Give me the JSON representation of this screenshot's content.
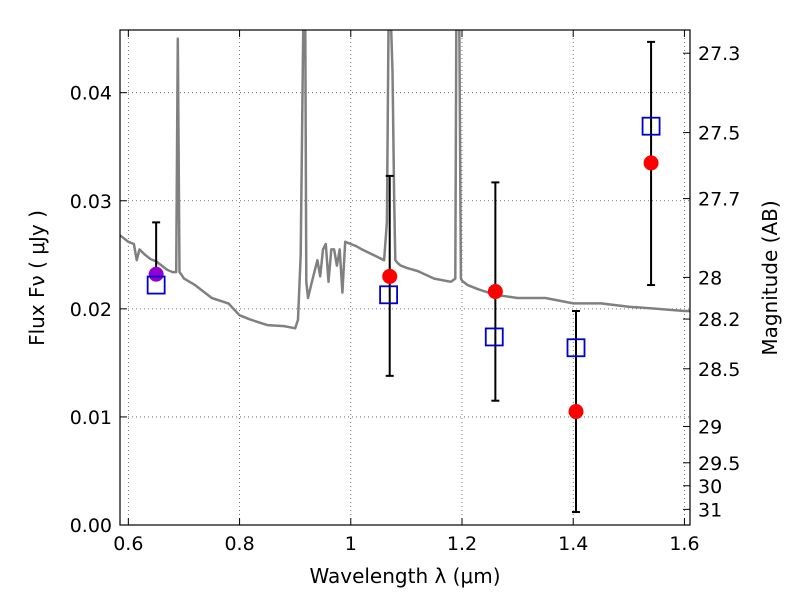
{
  "chart_data": {
    "type": "scatter",
    "title": "",
    "xlabel": "Wavelength  λ (μm)",
    "ylabel": "Flux  Fν  ( μJy )",
    "y2label": "Magnitude (AB)",
    "xlim": [
      0.585,
      1.61
    ],
    "ylim": [
      0.0,
      0.0458
    ],
    "grid": true,
    "legend": "none",
    "x_ticks": [
      0.6,
      0.8,
      1.0,
      1.2,
      1.4,
      1.6
    ],
    "x_tick_labels": [
      "0.6",
      "0.8",
      "1",
      "1.2",
      "1.4",
      "1.6"
    ],
    "y_ticks": [
      0.0,
      0.01,
      0.02,
      0.03,
      0.04
    ],
    "y_tick_labels": [
      "0.00",
      "0.01",
      "0.02",
      "0.03",
      "0.04"
    ],
    "mag_ticks": [
      "27.3",
      "27.5",
      "27.7",
      "28",
      "28.2",
      "28.5",
      "29",
      "29.5",
      "30",
      "31"
    ],
    "colors": {
      "model": "#808080",
      "observed": "#ff0000",
      "observed_first": "#9400d3",
      "model_photometry": "#0000cc",
      "grid": "#555555"
    },
    "series": [
      {
        "kind": "line",
        "style": "model",
        "x": [
          0.585,
          0.6,
          0.61,
          0.615,
          0.62,
          0.63,
          0.64,
          0.65,
          0.66,
          0.67,
          0.68,
          0.686,
          0.689,
          0.692,
          0.695,
          0.7,
          0.72,
          0.75,
          0.78,
          0.8,
          0.82,
          0.85,
          0.88,
          0.9,
          0.905,
          0.91,
          0.915,
          0.918,
          0.92,
          0.923,
          0.93,
          0.94,
          0.945,
          0.95,
          0.955,
          0.96,
          0.965,
          0.97,
          0.975,
          0.98,
          0.985,
          0.99,
          1.0,
          1.01,
          1.02,
          1.04,
          1.06,
          1.065,
          1.068,
          1.07,
          1.072,
          1.075,
          1.078,
          1.08,
          1.085,
          1.09,
          1.1,
          1.12,
          1.15,
          1.18,
          1.188,
          1.19,
          1.195,
          1.198,
          1.2,
          1.205,
          1.21,
          1.23,
          1.26,
          1.3,
          1.35,
          1.4,
          1.45,
          1.5,
          1.55,
          1.6,
          1.61
        ],
        "y": [
          0.0268,
          0.0262,
          0.026,
          0.0245,
          0.0255,
          0.025,
          0.0246,
          0.0244,
          0.024,
          0.0236,
          0.0234,
          0.0234,
          0.045,
          0.0234,
          0.0232,
          0.0228,
          0.0222,
          0.021,
          0.0205,
          0.0194,
          0.019,
          0.0185,
          0.0184,
          0.0182,
          0.019,
          0.025,
          0.048,
          0.048,
          0.0225,
          0.021,
          0.0225,
          0.0245,
          0.023,
          0.0255,
          0.026,
          0.0225,
          0.0255,
          0.0255,
          0.024,
          0.0255,
          0.0215,
          0.0262,
          0.026,
          0.0258,
          0.0255,
          0.025,
          0.0245,
          0.028,
          0.047,
          0.047,
          0.047,
          0.042,
          0.03,
          0.0245,
          0.0242,
          0.024,
          0.0238,
          0.0235,
          0.0228,
          0.0225,
          0.0228,
          0.048,
          0.048,
          0.0228,
          0.0226,
          0.0224,
          0.0222,
          0.0218,
          0.0213,
          0.021,
          0.021,
          0.0205,
          0.0205,
          0.0202,
          0.02,
          0.0198,
          0.0198
        ]
      },
      {
        "kind": "points",
        "style": "observed",
        "x": [
          0.65,
          1.07,
          1.26,
          1.405,
          1.54
        ],
        "y": [
          0.0232,
          0.023,
          0.0216,
          0.0105,
          0.0335
        ],
        "yerr_low": [
          0.0233,
          0.0138,
          0.0115,
          0.0012,
          0.0222
        ],
        "yerr_high": [
          0.028,
          0.0323,
          0.0317,
          0.0198,
          0.0447
        ]
      },
      {
        "kind": "points",
        "style": "model_photometry",
        "x": [
          0.65,
          1.068,
          1.258,
          1.405,
          1.54
        ],
        "y": [
          0.0222,
          0.0213,
          0.0174,
          0.0164,
          0.0369
        ]
      }
    ]
  }
}
